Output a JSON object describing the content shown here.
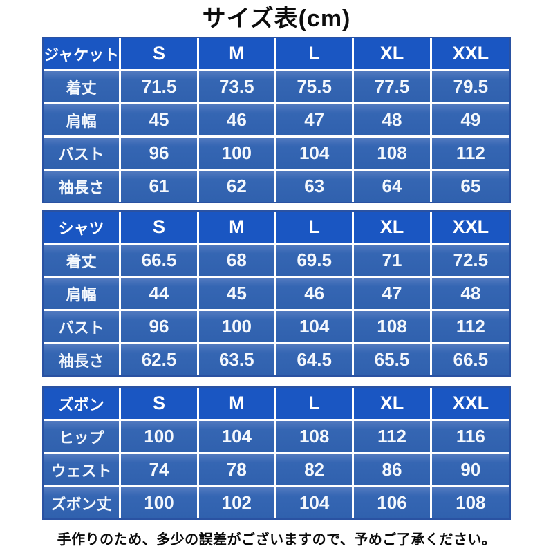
{
  "title": "サイズ表(cm)",
  "footer": "手作りのため、多少の誤差がございますので、予めご了承ください。",
  "colors": {
    "header_blue": "#1a56c2",
    "row_blue": "#3061ae",
    "row_blue_light": "#527ac0",
    "outer_border_navy": "#2a52a2",
    "grid_line_white": "#ffffff",
    "table_text_white": "#f4f8fd",
    "title_text_black": "#0d0d0d"
  },
  "chart_data": [
    {
      "type": "table",
      "title": "ジャケット",
      "columns": [
        "S",
        "M",
        "L",
        "XL",
        "XXL"
      ],
      "rows": [
        {
          "label": "着丈",
          "values": [
            "71.5",
            "73.5",
            "75.5",
            "77.5",
            "79.5"
          ]
        },
        {
          "label": "肩幅",
          "values": [
            "45",
            "46",
            "47",
            "48",
            "49"
          ]
        },
        {
          "label": "バスト",
          "values": [
            "96",
            "100",
            "104",
            "108",
            "112"
          ]
        },
        {
          "label": "袖長さ",
          "values": [
            "61",
            "62",
            "63",
            "64",
            "65"
          ]
        }
      ]
    },
    {
      "type": "table",
      "title": "シャツ",
      "columns": [
        "S",
        "M",
        "L",
        "XL",
        "XXL"
      ],
      "rows": [
        {
          "label": "着丈",
          "values": [
            "66.5",
            "68",
            "69.5",
            "71",
            "72.5"
          ]
        },
        {
          "label": "肩幅",
          "values": [
            "44",
            "45",
            "46",
            "47",
            "48"
          ]
        },
        {
          "label": "バスト",
          "values": [
            "96",
            "100",
            "104",
            "108",
            "112"
          ]
        },
        {
          "label": "袖長さ",
          "values": [
            "62.5",
            "63.5",
            "64.5",
            "65.5",
            "66.5"
          ]
        }
      ]
    },
    {
      "type": "table",
      "title": "ズボン",
      "columns": [
        "S",
        "M",
        "L",
        "XL",
        "XXL"
      ],
      "rows": [
        {
          "label": "ヒップ",
          "values": [
            "100",
            "104",
            "108",
            "112",
            "116"
          ]
        },
        {
          "label": "ウェスト",
          "values": [
            "74",
            "78",
            "82",
            "86",
            "90"
          ]
        },
        {
          "label": "ズボン丈",
          "values": [
            "100",
            "102",
            "104",
            "106",
            "108"
          ]
        }
      ]
    }
  ]
}
